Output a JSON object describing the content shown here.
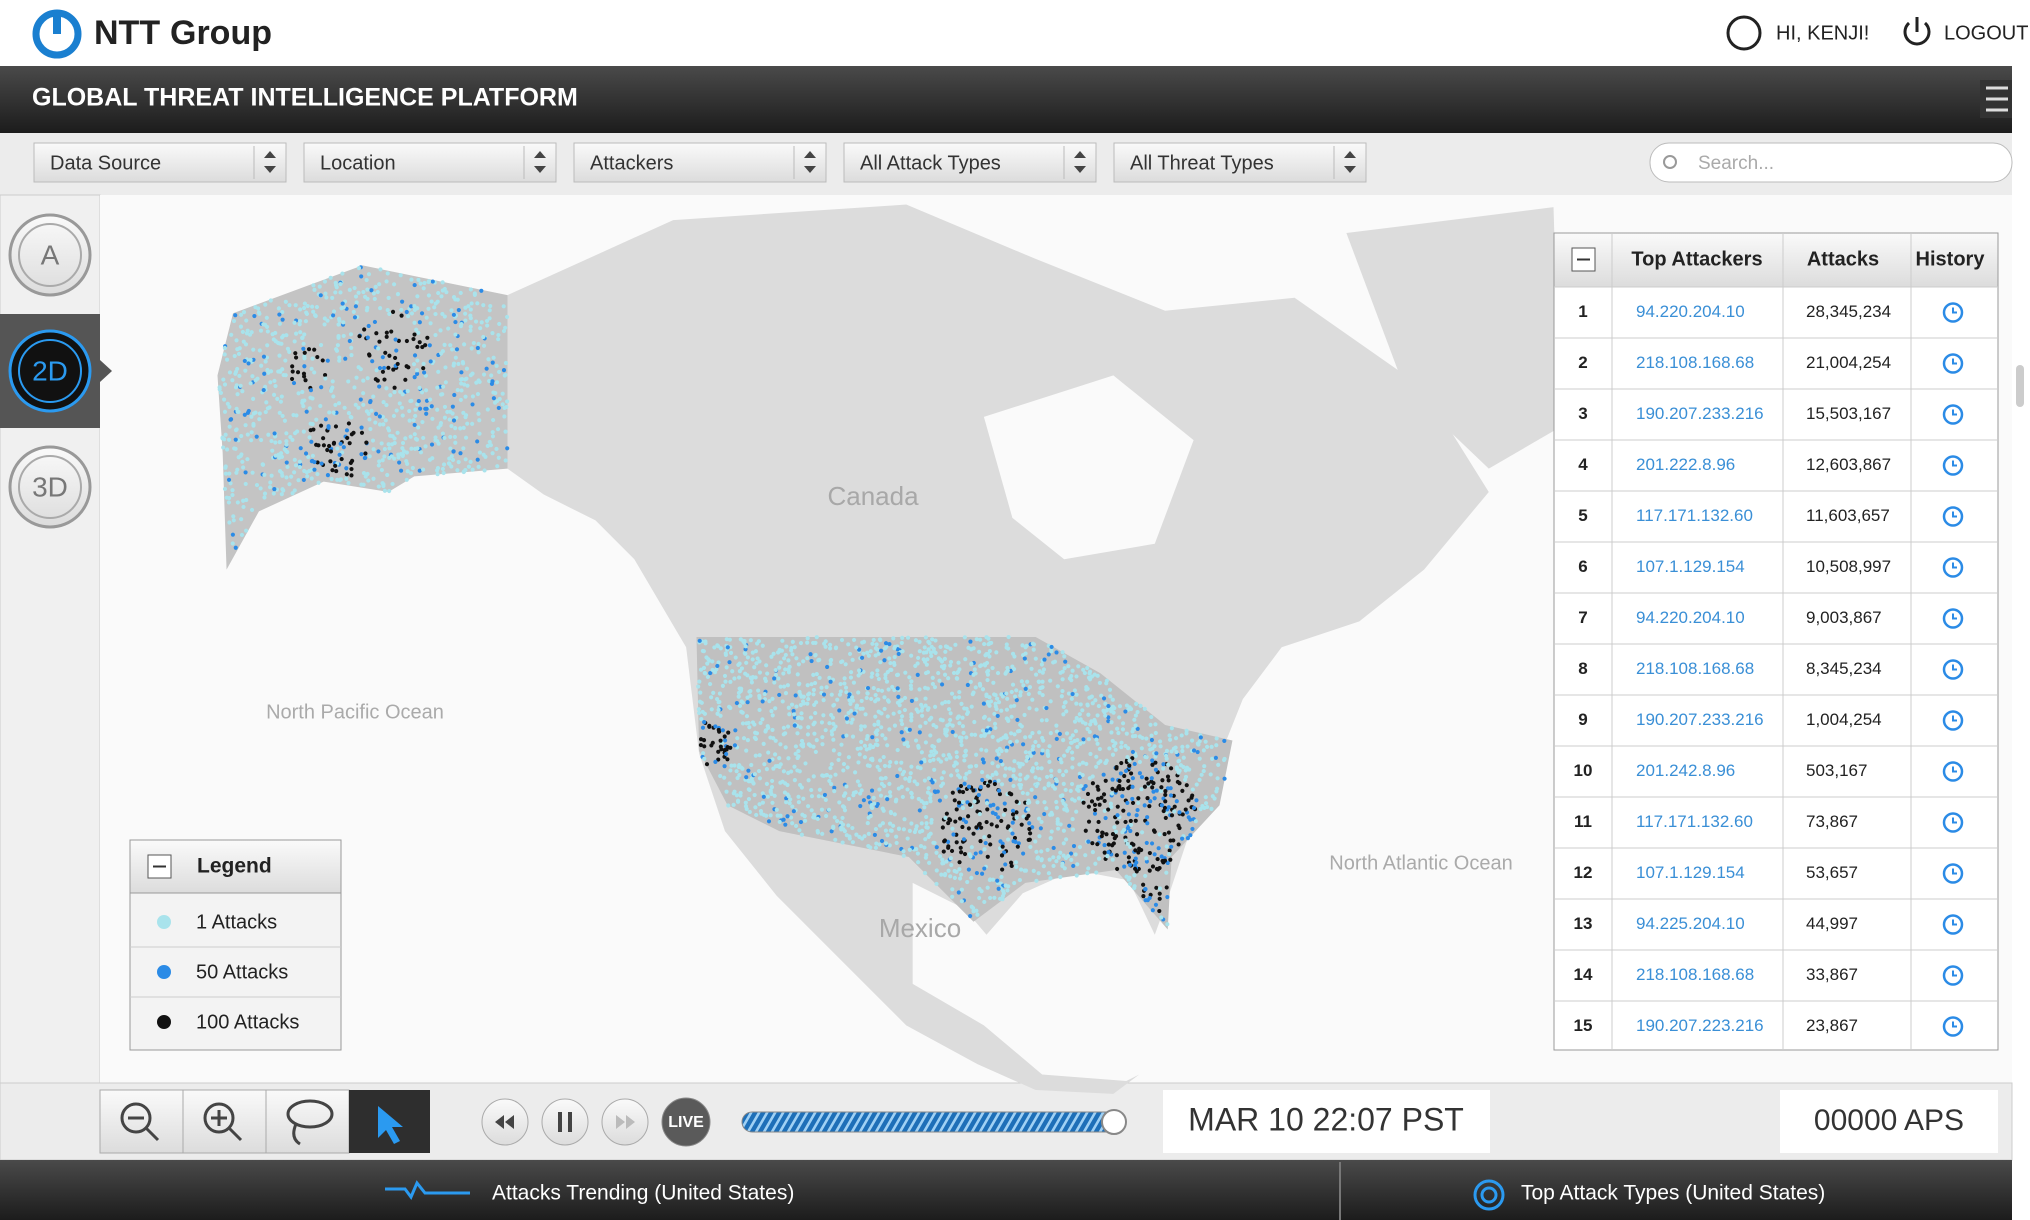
{
  "header": {
    "logo_brand": "NTT",
    "logo_suffix": "Group",
    "greeting": "HI, KENJI!",
    "logout": "LOGOUT",
    "title": "GLOBAL THREAT INTELLIGENCE PLATFORM"
  },
  "filters": [
    "Data Source",
    "Location",
    "Attackers",
    "All Attack Types",
    "All Threat Types"
  ],
  "search_placeholder": "Search...",
  "view_buttons": [
    "A",
    "2D",
    "3D"
  ],
  "map_labels": {
    "canada": "Canada",
    "pacific": "North Pacific Ocean",
    "mexico": "Mexico",
    "atlantic": "North Atlantic Ocean"
  },
  "legend": {
    "title": "Legend",
    "items": [
      {
        "label": "1 Attacks",
        "color": "#a9e3ec"
      },
      {
        "label": "50 Attacks",
        "color": "#2b8be6"
      },
      {
        "label": "100 Attacks",
        "color": "#111111"
      }
    ]
  },
  "table": {
    "headers": [
      "Top Attackers",
      "Attacks",
      "History"
    ],
    "rows": [
      [
        "1",
        "94.220.204.10",
        "28,345,234"
      ],
      [
        "2",
        "218.108.168.68",
        "21,004,254"
      ],
      [
        "3",
        "190.207.233.216",
        "15,503,167"
      ],
      [
        "4",
        "201.222.8.96",
        "12,603,867"
      ],
      [
        "5",
        "117.171.132.60",
        "11,603,657"
      ],
      [
        "6",
        "107.1.129.154",
        "10,508,997"
      ],
      [
        "7",
        "94.220.204.10",
        "9,003,867"
      ],
      [
        "8",
        "218.108.168.68",
        "8,345,234"
      ],
      [
        "9",
        "190.207.233.216",
        "1,004,254"
      ],
      [
        "10",
        "201.242.8.96",
        "503,167"
      ],
      [
        "11",
        "117.171.132.60",
        "73,867"
      ],
      [
        "12",
        "107.1.129.154",
        "53,657"
      ],
      [
        "13",
        "94.225.204.10",
        "44,997"
      ],
      [
        "14",
        "218.108.168.68",
        "33,867"
      ],
      [
        "15",
        "190.207.223.216",
        "23,867"
      ]
    ]
  },
  "controls": {
    "live": "LIVE",
    "datetime": "MAR 10 22:07 PST",
    "rate": "00000 APS"
  },
  "footer": {
    "left_tab": "Attacks Trending (United States)",
    "right_tab": "Top Attack Types (United States)"
  }
}
